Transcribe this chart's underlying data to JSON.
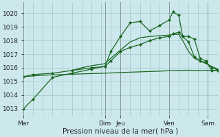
{
  "background_color": "#cce8ec",
  "grid_color": "#aacccc",
  "line_color": "#1a6620",
  "title": "Pression niveau de la mer( hPa )",
  "ylabel_values": [
    1013,
    1014,
    1015,
    1016,
    1017,
    1018,
    1019,
    1020
  ],
  "ylim": [
    1012.5,
    1020.8
  ],
  "xlim": [
    0,
    100
  ],
  "xtick_positions": [
    0,
    42,
    50,
    75,
    95
  ],
  "xtick_labels": [
    "Mar",
    "Dim",
    "Jeu",
    "Ven",
    "Sam"
  ],
  "vline_positions": [
    0,
    42,
    50,
    75,
    95
  ],
  "series1_x": [
    0,
    5,
    15,
    25,
    35,
    42,
    45,
    50,
    55,
    60,
    65,
    70,
    75,
    77,
    80,
    82,
    85,
    88,
    91,
    94,
    97,
    100
  ],
  "series1_y": [
    1013.0,
    1013.7,
    1015.3,
    1015.6,
    1015.9,
    1016.1,
    1017.2,
    1018.3,
    1019.3,
    1019.4,
    1018.7,
    1019.1,
    1019.5,
    1020.1,
    1019.85,
    1018.3,
    1018.3,
    1018.1,
    1016.7,
    1016.5,
    1015.8,
    1015.8
  ],
  "series2_x": [
    0,
    5,
    15,
    25,
    35,
    42,
    45,
    50,
    55,
    60,
    65,
    70,
    75,
    77,
    80,
    82,
    85,
    88,
    91,
    94,
    97,
    100
  ],
  "series2_y": [
    1015.35,
    1015.5,
    1015.6,
    1015.8,
    1016.0,
    1016.1,
    1016.5,
    1017.2,
    1017.5,
    1017.7,
    1018.0,
    1018.2,
    1018.3,
    1018.5,
    1018.6,
    1018.3,
    1017.9,
    1016.8,
    1016.5,
    1016.4,
    1016.0,
    1015.85
  ],
  "series3_x": [
    0,
    10,
    20,
    30,
    42,
    50,
    60,
    70,
    75,
    80,
    85,
    90,
    95,
    100
  ],
  "series3_y": [
    1015.35,
    1015.45,
    1015.5,
    1015.55,
    1015.6,
    1015.65,
    1015.7,
    1015.75,
    1015.78,
    1015.8,
    1015.82,
    1015.8,
    1015.8,
    1015.8
  ],
  "series4_x": [
    25,
    30,
    35,
    42,
    45,
    50,
    55,
    60,
    65,
    70,
    75,
    77,
    80,
    82,
    85,
    88,
    91,
    94,
    97,
    100
  ],
  "series4_y": [
    1015.8,
    1016.0,
    1016.15,
    1016.3,
    1016.7,
    1017.3,
    1017.9,
    1018.2,
    1018.3,
    1018.35,
    1018.4,
    1018.45,
    1018.45,
    1018.0,
    1017.2,
    1016.7,
    1016.5,
    1016.3,
    1016.1,
    1015.9
  ]
}
